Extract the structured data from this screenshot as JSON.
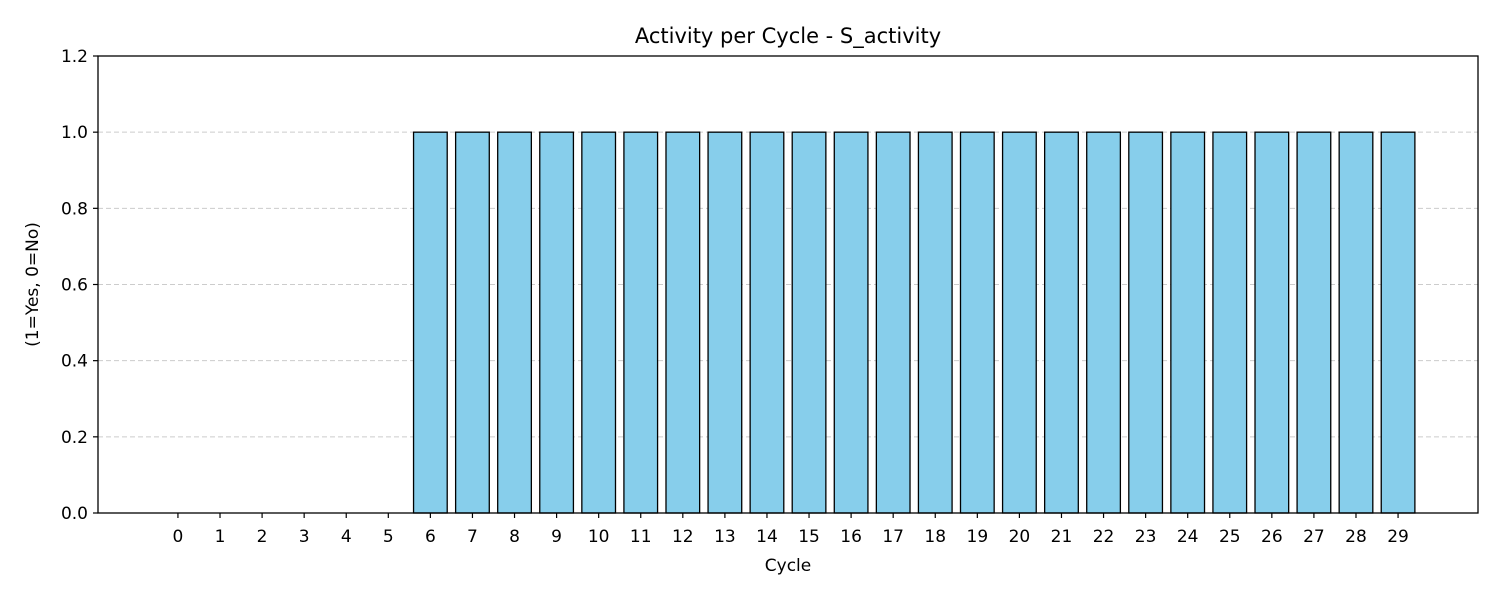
{
  "chart_data": {
    "type": "bar",
    "title": "Activity per Cycle - S_activity",
    "xlabel": "Cycle",
    "ylabel": "(1=Yes, 0=No)",
    "categories": [
      "0",
      "1",
      "2",
      "3",
      "4",
      "5",
      "6",
      "7",
      "8",
      "9",
      "10",
      "11",
      "12",
      "13",
      "14",
      "15",
      "16",
      "17",
      "18",
      "19",
      "20",
      "21",
      "22",
      "23",
      "24",
      "25",
      "26",
      "27",
      "28",
      "29"
    ],
    "values": [
      0,
      0,
      0,
      0,
      0,
      0,
      1,
      1,
      1,
      1,
      1,
      1,
      1,
      1,
      1,
      1,
      1,
      1,
      1,
      1,
      1,
      1,
      1,
      1,
      1,
      1,
      1,
      1,
      1,
      1
    ],
    "ylim": [
      0,
      1.2
    ],
    "yticks": [
      "0.0",
      "0.2",
      "0.4",
      "0.6",
      "0.8",
      "1.0",
      "1.2"
    ],
    "grid": "y-dashed",
    "bar_color": "#87CEEB",
    "edge_color": "#000000",
    "grid_color": "#cccccc"
  }
}
